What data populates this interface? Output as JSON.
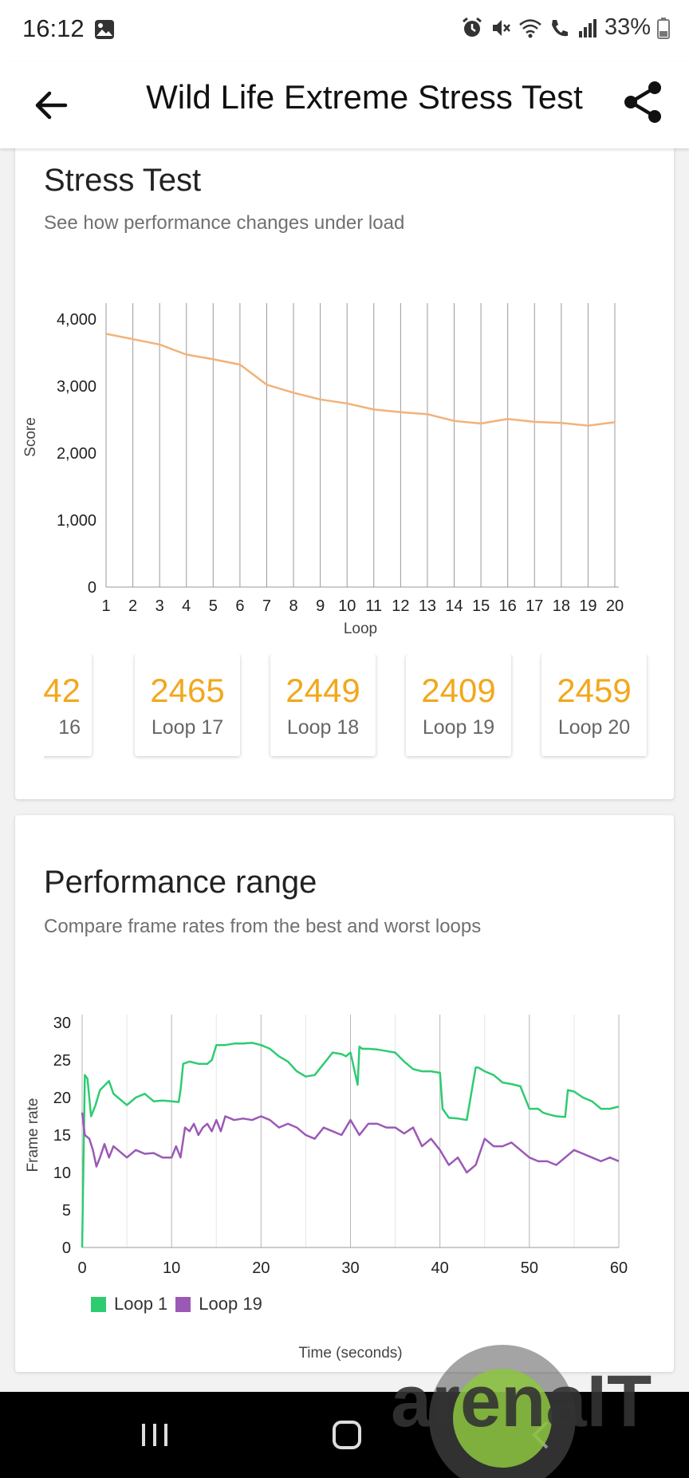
{
  "status_bar": {
    "time": "16:12",
    "battery": "33%",
    "icons": [
      "gallery-icon",
      "alarm-icon",
      "mute-icon",
      "wifi-icon",
      "wifi-call-icon",
      "signal-icon",
      "battery-icon"
    ]
  },
  "app_bar": {
    "title": "Wild Life Extreme Stress Test",
    "back_icon": "arrow-left-icon",
    "share_icon": "share-icon"
  },
  "stress_card": {
    "title": "Stress Test",
    "subtitle": "See how performance changes under load",
    "loop_cards": [
      {
        "value": "42",
        "label": "16"
      },
      {
        "value": "2465",
        "label": "Loop 17"
      },
      {
        "value": "2449",
        "label": "Loop 18"
      },
      {
        "value": "2409",
        "label": "Loop 19"
      },
      {
        "value": "2459",
        "label": "Loop 20"
      }
    ]
  },
  "range_card": {
    "title": "Performance range",
    "subtitle": "Compare frame rates from the best and worst loops"
  },
  "colors": {
    "score_line": "#f2b27a",
    "loop1": "#2ecc71",
    "loop19": "#9b59b6",
    "loop_value": "#f2a81c"
  },
  "watermark": "arenaIT",
  "chart_data": [
    {
      "type": "line",
      "title": "",
      "xlabel": "Loop",
      "ylabel": "Score",
      "x": [
        1,
        2,
        3,
        4,
        5,
        6,
        7,
        8,
        9,
        10,
        11,
        12,
        13,
        14,
        15,
        16,
        17,
        18,
        19,
        20
      ],
      "xticks": [
        "1",
        "2",
        "3",
        "4",
        "5",
        "6",
        "7",
        "8",
        "9",
        "10",
        "11",
        "12",
        "13",
        "14",
        "15",
        "16",
        "17",
        "18",
        "19",
        "20"
      ],
      "yticks": [
        "0",
        "1,000",
        "2,000",
        "3,000",
        "4,000"
      ],
      "ylim": [
        0,
        4000
      ],
      "series": [
        {
          "values": [
            3780,
            3700,
            3620,
            3470,
            3400,
            3320,
            3020,
            2900,
            2800,
            2740,
            2650,
            2610,
            2580,
            2480,
            2440,
            2510,
            2465,
            2449,
            2409,
            2459
          ]
        }
      ],
      "grid": "vertical"
    },
    {
      "type": "line",
      "title": "",
      "xlabel": "Time (seconds)",
      "ylabel": "Frame rate",
      "xlim": [
        0,
        60
      ],
      "ylim": [
        0,
        30
      ],
      "xticks": [
        "0",
        "10",
        "20",
        "30",
        "40",
        "50",
        "60"
      ],
      "yticks": [
        "0",
        "5",
        "10",
        "15",
        "20",
        "25",
        "30"
      ],
      "legend_position": "bottom-left",
      "series": [
        {
          "name": "Loop 1",
          "x": [
            0,
            0.3,
            0.6,
            1,
            1.5,
            2,
            3,
            3.5,
            4,
            5,
            6,
            7,
            8,
            9,
            10,
            10.8,
            11,
            11.3,
            12,
            13,
            14,
            14.5,
            15,
            16,
            17,
            18,
            19,
            20,
            21,
            22,
            23,
            24,
            25,
            26,
            27,
            28,
            29,
            29.5,
            30,
            30.8,
            31,
            31.3,
            32,
            33,
            34,
            35,
            36,
            37,
            38,
            39,
            40,
            40.3,
            41,
            42,
            43,
            44,
            44.3,
            45,
            46,
            47,
            48,
            49,
            50,
            51,
            51.5,
            52,
            53,
            54,
            54.3,
            55,
            56,
            57,
            58,
            59,
            60
          ],
          "values": [
            0,
            23,
            22.5,
            17.5,
            19,
            21,
            22.2,
            20.5,
            20,
            19,
            20,
            20.5,
            19.5,
            19.6,
            19.5,
            19.4,
            21,
            24.5,
            24.8,
            24.5,
            24.5,
            25,
            27,
            27,
            27.2,
            27.2,
            27.3,
            27,
            26.5,
            25.5,
            24.8,
            23.5,
            22.8,
            23,
            24.5,
            26,
            25.8,
            25.5,
            26,
            21.7,
            26.8,
            26.5,
            26.5,
            26.4,
            26.2,
            26,
            24.8,
            23.8,
            23.5,
            23.5,
            23.3,
            18.5,
            17.3,
            17.2,
            17,
            24,
            24,
            23.5,
            23,
            22,
            21.8,
            21.5,
            18.5,
            18.5,
            18,
            17.8,
            17.5,
            17.4,
            21,
            20.8,
            20,
            19.5,
            18.5,
            18.5,
            18.8
          ]
        },
        {
          "name": "Loop 19",
          "x": [
            0,
            0.3,
            0.8,
            1.2,
            1.6,
            2,
            2.5,
            3,
            3.5,
            4,
            5,
            6,
            7,
            8,
            9,
            10,
            10.5,
            11,
            11.5,
            12,
            12.5,
            13,
            13.5,
            14,
            14.5,
            15,
            15.5,
            16,
            17,
            18,
            19,
            20,
            21,
            22,
            23,
            24,
            25,
            26,
            27,
            28,
            29,
            30,
            30.5,
            31,
            32,
            33,
            34,
            35,
            36,
            37,
            38,
            39,
            40,
            41,
            42,
            43,
            44,
            45,
            46,
            47,
            48,
            49,
            50,
            51,
            52,
            53,
            54,
            55,
            56,
            57,
            58,
            59,
            60
          ],
          "values": [
            18,
            15,
            14.5,
            13,
            10.8,
            12,
            13.8,
            12,
            13.5,
            13,
            12,
            13,
            12.5,
            12.6,
            12,
            12,
            13.5,
            12,
            16,
            15.5,
            16.5,
            15,
            16,
            16.5,
            15.5,
            17,
            15.5,
            17.5,
            17,
            17.2,
            17,
            17.5,
            17,
            16,
            16.5,
            16,
            15,
            14.5,
            16,
            15.5,
            15,
            17,
            16,
            15,
            16.5,
            16.5,
            16,
            16,
            15.2,
            16,
            13.5,
            14.5,
            13,
            11,
            12,
            10,
            11,
            14.5,
            13.5,
            13.5,
            14,
            13,
            12,
            11.5,
            11.5,
            11,
            12,
            13,
            12.5,
            12,
            11.5,
            12,
            11.5
          ]
        }
      ]
    }
  ]
}
